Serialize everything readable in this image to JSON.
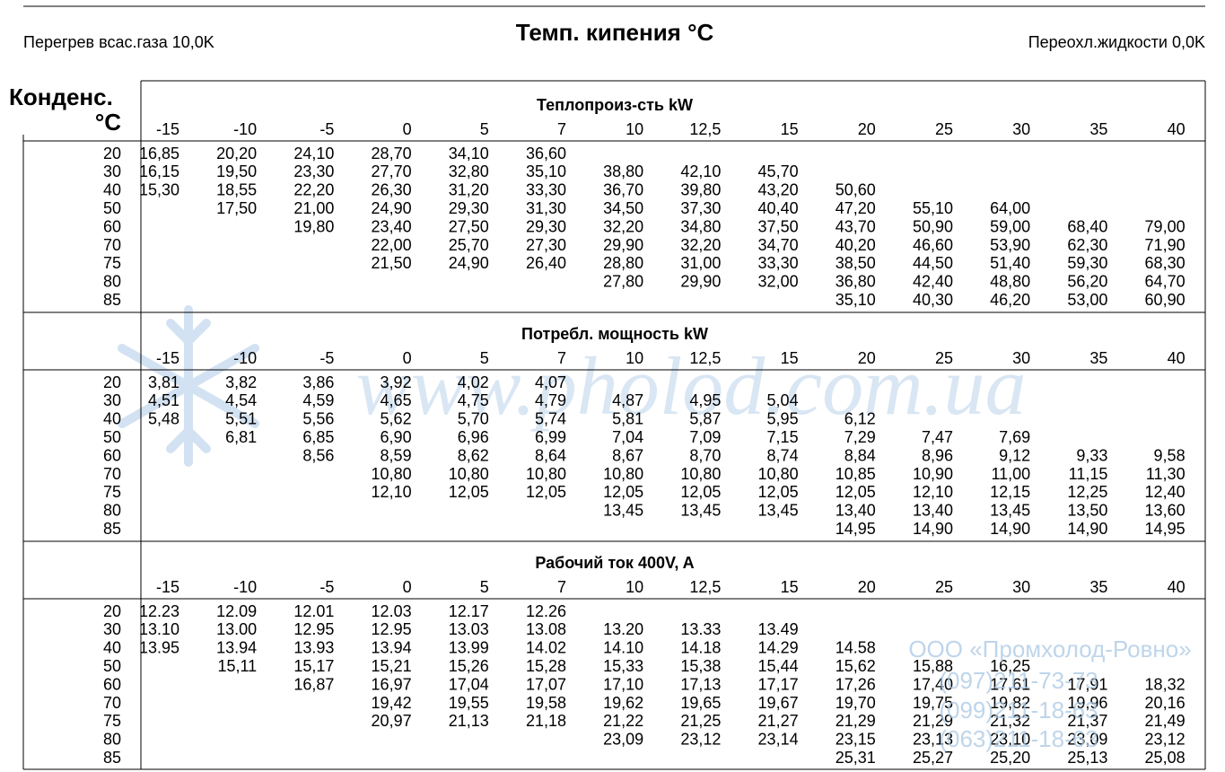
{
  "header": {
    "title": "Темп. кипения °C",
    "left": "Перегрев всас.газа 10,0K",
    "right": "Переохл.жидкости 0,0K"
  },
  "corner": {
    "line1": "Конденс.",
    "line2": "°C"
  },
  "columns": [
    "-15",
    "-10",
    "-5",
    "0",
    "5",
    "7",
    "10",
    "12,5",
    "15",
    "20",
    "25",
    "30",
    "35",
    "40"
  ],
  "row_labels": [
    "20",
    "30",
    "40",
    "50",
    "60",
    "70",
    "75",
    "80",
    "85"
  ],
  "sections": [
    {
      "title": "Теплопроиз-сть kW",
      "rows": [
        [
          "16,85",
          "20,20",
          "24,10",
          "28,70",
          "34,10",
          "36,60",
          null,
          null,
          null,
          null,
          null,
          null,
          null,
          null
        ],
        [
          "16,15",
          "19,50",
          "23,30",
          "27,70",
          "32,80",
          "35,10",
          "38,80",
          "42,10",
          "45,70",
          null,
          null,
          null,
          null,
          null
        ],
        [
          "15,30",
          "18,55",
          "22,20",
          "26,30",
          "31,20",
          "33,30",
          "36,70",
          "39,80",
          "43,20",
          "50,60",
          null,
          null,
          null,
          null
        ],
        [
          null,
          "17,50",
          "21,00",
          "24,90",
          "29,30",
          "31,30",
          "34,50",
          "37,30",
          "40,40",
          "47,20",
          "55,10",
          "64,00",
          null,
          null
        ],
        [
          null,
          null,
          "19,80",
          "23,40",
          "27,50",
          "29,30",
          "32,20",
          "34,80",
          "37,50",
          "43,70",
          "50,90",
          "59,00",
          "68,40",
          "79,00"
        ],
        [
          null,
          null,
          null,
          "22,00",
          "25,70",
          "27,30",
          "29,90",
          "32,20",
          "34,70",
          "40,20",
          "46,60",
          "53,90",
          "62,30",
          "71,90"
        ],
        [
          null,
          null,
          null,
          "21,50",
          "24,90",
          "26,40",
          "28,80",
          "31,00",
          "33,30",
          "38,50",
          "44,50",
          "51,40",
          "59,30",
          "68,30"
        ],
        [
          null,
          null,
          null,
          null,
          null,
          null,
          "27,80",
          "29,90",
          "32,00",
          "36,80",
          "42,40",
          "48,80",
          "56,20",
          "64,70"
        ],
        [
          null,
          null,
          null,
          null,
          null,
          null,
          null,
          null,
          null,
          "35,10",
          "40,30",
          "46,20",
          "53,00",
          "60,90"
        ]
      ]
    },
    {
      "title": "Потребл. мощность kW",
      "rows": [
        [
          "3,81",
          "3,82",
          "3,86",
          "3,92",
          "4,02",
          "4,07",
          null,
          null,
          null,
          null,
          null,
          null,
          null,
          null
        ],
        [
          "4,51",
          "4,54",
          "4,59",
          "4,65",
          "4,75",
          "4,79",
          "4,87",
          "4,95",
          "5,04",
          null,
          null,
          null,
          null,
          null
        ],
        [
          "5,48",
          "5,51",
          "5,56",
          "5,62",
          "5,70",
          "5,74",
          "5,81",
          "5,87",
          "5,95",
          "6,12",
          null,
          null,
          null,
          null
        ],
        [
          null,
          "6,81",
          "6,85",
          "6,90",
          "6,96",
          "6,99",
          "7,04",
          "7,09",
          "7,15",
          "7,29",
          "7,47",
          "7,69",
          null,
          null
        ],
        [
          null,
          null,
          "8,56",
          "8,59",
          "8,62",
          "8,64",
          "8,67",
          "8,70",
          "8,74",
          "8,84",
          "8,96",
          "9,12",
          "9,33",
          "9,58"
        ],
        [
          null,
          null,
          null,
          "10,80",
          "10,80",
          "10,80",
          "10,80",
          "10,80",
          "10,80",
          "10,85",
          "10,90",
          "11,00",
          "11,15",
          "11,30"
        ],
        [
          null,
          null,
          null,
          "12,10",
          "12,05",
          "12,05",
          "12,05",
          "12,05",
          "12,05",
          "12,05",
          "12,10",
          "12,15",
          "12,25",
          "12,40"
        ],
        [
          null,
          null,
          null,
          null,
          null,
          null,
          "13,45",
          "13,45",
          "13,45",
          "13,40",
          "13,40",
          "13,45",
          "13,50",
          "13,60"
        ],
        [
          null,
          null,
          null,
          null,
          null,
          null,
          null,
          null,
          null,
          "14,95",
          "14,90",
          "14,90",
          "14,90",
          "14,95"
        ]
      ]
    },
    {
      "title": "Рабочий ток 400V, A",
      "rows": [
        [
          "12.23",
          "12.09",
          "12.01",
          "12.03",
          "12.17",
          "12.26",
          null,
          null,
          null,
          null,
          null,
          null,
          null,
          null
        ],
        [
          "13.10",
          "13.00",
          "12.95",
          "12.95",
          "13.03",
          "13.08",
          "13.20",
          "13.33",
          "13.49",
          null,
          null,
          null,
          null,
          null
        ],
        [
          "13.95",
          "13.94",
          "13.93",
          "13.94",
          "13.99",
          "14.02",
          "14.10",
          "14.18",
          "14.29",
          "14.58",
          null,
          null,
          null,
          null
        ],
        [
          null,
          "15,11",
          "15,17",
          "15,21",
          "15,26",
          "15,28",
          "15,33",
          "15,38",
          "15,44",
          "15,62",
          "15,88",
          "16,25",
          null,
          null
        ],
        [
          null,
          null,
          "16,87",
          "16,97",
          "17,04",
          "17,07",
          "17,10",
          "17,13",
          "17,17",
          "17,26",
          "17,40",
          "17,61",
          "17,91",
          "18,32"
        ],
        [
          null,
          null,
          null,
          "19,42",
          "19,55",
          "19,58",
          "19,62",
          "19,65",
          "19,67",
          "19,70",
          "19,75",
          "19,82",
          "19,96",
          "20,16"
        ],
        [
          null,
          null,
          null,
          "20,97",
          "21,13",
          "21,18",
          "21,22",
          "21,25",
          "21,27",
          "21,29",
          "21,29",
          "21,32",
          "21,37",
          "21,49"
        ],
        [
          null,
          null,
          null,
          null,
          null,
          null,
          "23,09",
          "23,12",
          "23,14",
          "23,15",
          "23,13",
          "23,10",
          "23,09",
          "23,12"
        ],
        [
          null,
          null,
          null,
          null,
          null,
          null,
          null,
          null,
          null,
          "25,31",
          "25,27",
          "25,20",
          "25,13",
          "25,08"
        ]
      ]
    }
  ],
  "watermark": {
    "site": "www.pholod.com.ua",
    "company": "ООО «Промхолод-Ровно»",
    "phones": [
      "(097)211-73-73",
      "(099)211-18-63",
      "(063)211-18-63"
    ]
  }
}
